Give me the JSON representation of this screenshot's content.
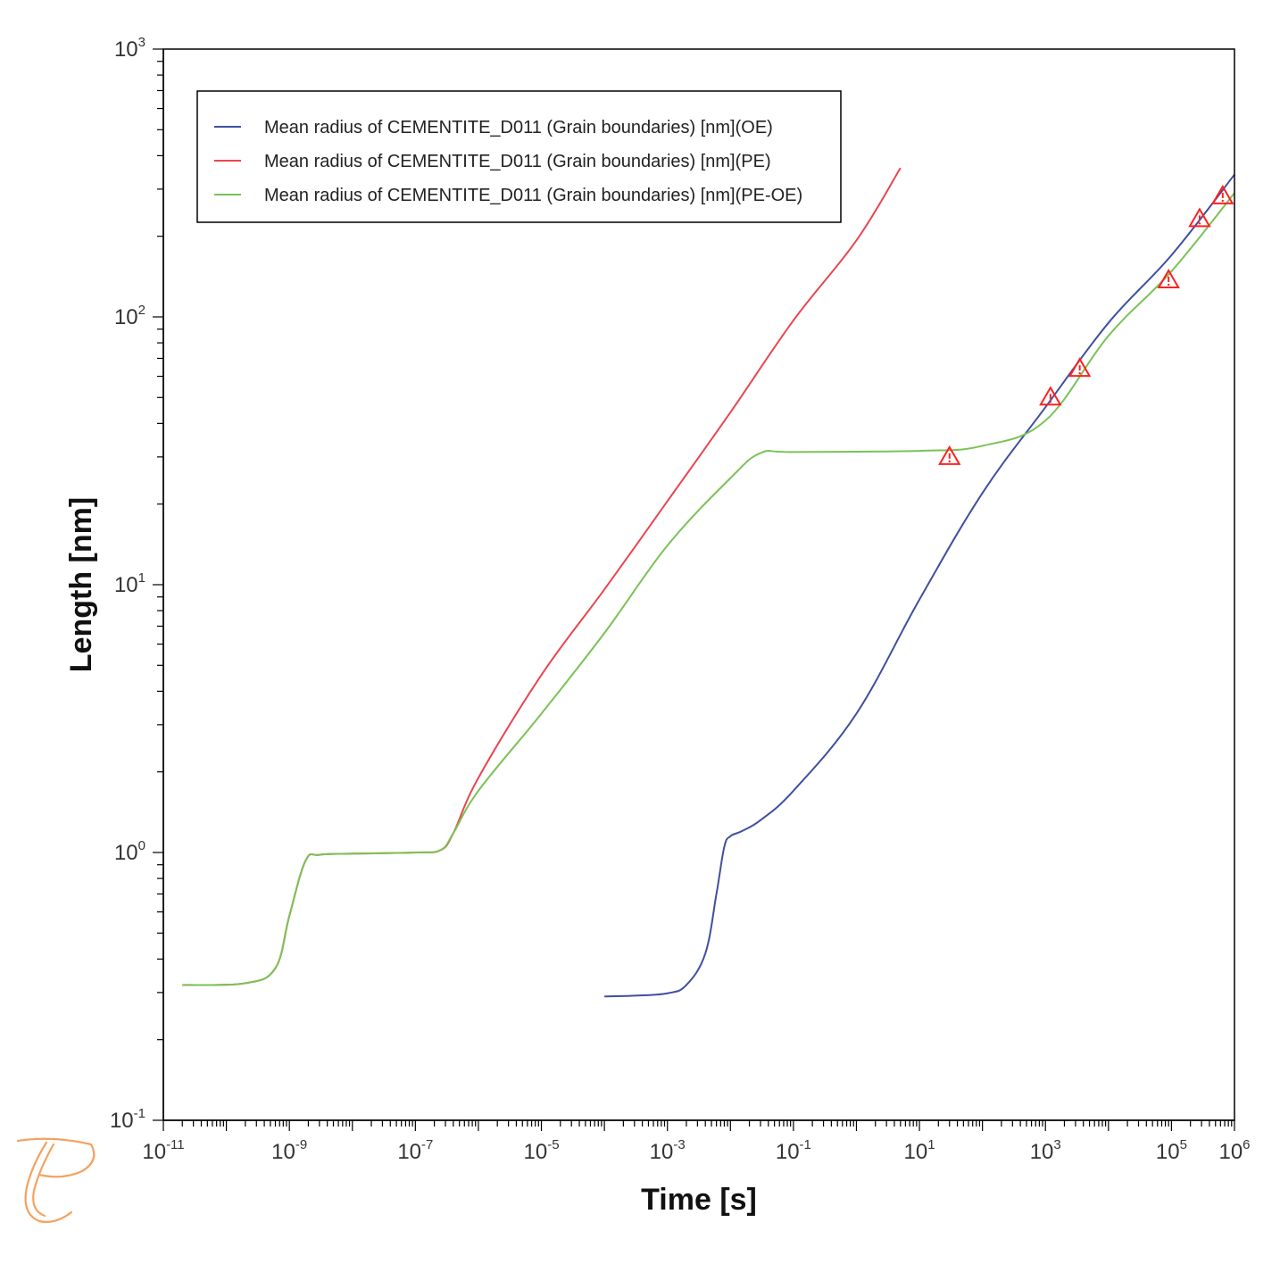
{
  "chart_data": {
    "type": "line",
    "xlabel": "Time [s]",
    "ylabel": "Length [nm]",
    "xscale": "log",
    "yscale": "log",
    "xlim": [
      1e-11,
      1000000.0
    ],
    "ylim": [
      0.1,
      1000
    ],
    "x_tick_labels": [
      {
        "base": "10",
        "exp": "-11",
        "value": 1e-11
      },
      {
        "base": "10",
        "exp": "-9",
        "value": 1e-09
      },
      {
        "base": "10",
        "exp": "-7",
        "value": 1e-07
      },
      {
        "base": "10",
        "exp": "-5",
        "value": 1e-05
      },
      {
        "base": "10",
        "exp": "-3",
        "value": 0.001
      },
      {
        "base": "10",
        "exp": "-1",
        "value": 0.1
      },
      {
        "base": "10",
        "exp": "1",
        "value": 10
      },
      {
        "base": "10",
        "exp": "3",
        "value": 1000
      },
      {
        "base": "10",
        "exp": "5",
        "value": 100000
      },
      {
        "base": "10",
        "exp": "6",
        "value": 1000000
      }
    ],
    "y_tick_labels": [
      {
        "base": "10",
        "exp": "-1",
        "value": 0.1
      },
      {
        "base": "10",
        "exp": "0",
        "value": 1
      },
      {
        "base": "10",
        "exp": "1",
        "value": 10
      },
      {
        "base": "10",
        "exp": "2",
        "value": 100
      },
      {
        "base": "10",
        "exp": "3",
        "value": 1000
      }
    ],
    "legend_position": "top-left",
    "grid": false,
    "series": [
      {
        "name": "Mean radius of CEMENTITE_D011 (Grain boundaries) [nm](OE)",
        "color": "#3f4fa0",
        "points": [
          [
            0.0001,
            0.29
          ],
          [
            0.0003,
            0.292
          ],
          [
            0.001,
            0.298
          ],
          [
            0.002,
            0.32
          ],
          [
            0.004,
            0.42
          ],
          [
            0.006,
            0.7
          ],
          [
            0.008,
            1.05
          ],
          [
            0.01,
            1.15
          ],
          [
            0.015,
            1.2
          ],
          [
            0.03,
            1.32
          ],
          [
            0.1,
            1.7
          ],
          [
            1,
            3.3
          ],
          [
            10,
            8.8
          ],
          [
            100,
            22
          ],
          [
            1000,
            46
          ],
          [
            10000.0,
            95
          ],
          [
            100000.0,
            170
          ],
          [
            1000000.0,
            340
          ]
        ]
      },
      {
        "name": "Mean radius of CEMENTITE_D011 (Grain boundaries) [nm](PE)",
        "color": "#e8464f",
        "points": [
          [
            2e-11,
            0.32
          ],
          [
            2e-10,
            0.325
          ],
          [
            6e-10,
            0.37
          ],
          [
            1e-09,
            0.58
          ],
          [
            1.8e-09,
            0.93
          ],
          [
            3e-09,
            0.98
          ],
          [
            1e-08,
            0.99
          ],
          [
            1e-07,
            1.0
          ],
          [
            2.5e-07,
            1.02
          ],
          [
            4e-07,
            1.18
          ],
          [
            1e-06,
            1.9
          ],
          [
            1e-05,
            4.6
          ],
          [
            0.0001,
            9.6
          ],
          [
            0.001,
            20.5
          ],
          [
            0.01,
            44
          ],
          [
            0.1,
            97
          ],
          [
            1,
            193
          ],
          [
            5,
            360
          ]
        ]
      },
      {
        "name": "Mean radius of CEMENTITE_D011 (Grain boundaries) [nm](PE-OE)",
        "color": "#7ac256",
        "points": [
          [
            2e-11,
            0.32
          ],
          [
            2e-10,
            0.325
          ],
          [
            6e-10,
            0.37
          ],
          [
            1e-09,
            0.58
          ],
          [
            1.8e-09,
            0.93
          ],
          [
            3e-09,
            0.98
          ],
          [
            1e-08,
            0.99
          ],
          [
            1e-07,
            1.0
          ],
          [
            2.5e-07,
            1.02
          ],
          [
            4e-07,
            1.18
          ],
          [
            1e-06,
            1.7
          ],
          [
            1e-05,
            3.3
          ],
          [
            0.0001,
            6.6
          ],
          [
            0.001,
            14
          ],
          [
            0.01,
            25
          ],
          [
            0.03,
            31
          ],
          [
            0.1,
            31.3
          ],
          [
            10,
            31.6
          ],
          [
            100,
            33
          ],
          [
            1000,
            41
          ],
          [
            10000.0,
            85
          ],
          [
            100000.0,
            148
          ],
          [
            1000000.0,
            290
          ]
        ]
      }
    ],
    "warning_markers": {
      "symbol": "warning-triangle",
      "color": "#ff2020",
      "points": [
        [
          30,
          30
        ],
        [
          1200,
          50
        ],
        [
          3500,
          64
        ],
        [
          90000.0,
          137
        ],
        [
          280000.0,
          232
        ],
        [
          650000.0,
          282
        ]
      ]
    }
  },
  "branding": {
    "logo_name": "thermo-calc-logo",
    "logo_color": "#f4a261"
  }
}
